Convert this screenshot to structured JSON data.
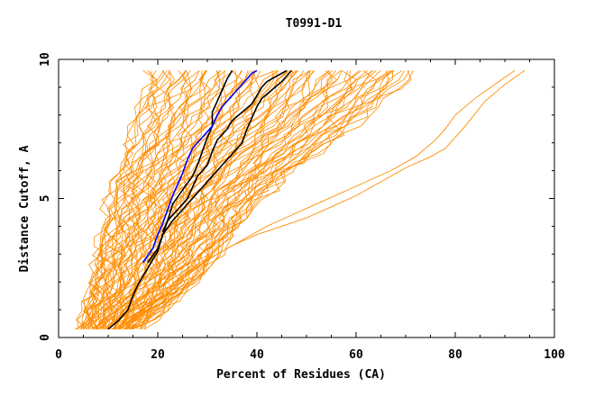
{
  "chart_data": {
    "type": "line",
    "title": "T0991-D1",
    "xlabel": "Percent of Residues (CA)",
    "ylabel": "Distance Cutoff, A",
    "xlim": [
      0,
      100
    ],
    "ylim": [
      0,
      10
    ],
    "xticks": [
      0,
      20,
      40,
      60,
      80,
      100
    ],
    "yticks": [
      0,
      5,
      10
    ],
    "colors": {
      "background": "#ffffff",
      "frame": "#000000",
      "bundle": "#ff8c00",
      "highlight_black": "#000000",
      "highlight_blue": "#0000ff"
    },
    "bundle_note": "Many orange model curves (GDT-style), shown as an approximate envelope",
    "series": [
      {
        "name": "black-1",
        "color": "#000000",
        "x": [
          10,
          12,
          14,
          15,
          16,
          18,
          20,
          21,
          22,
          23,
          25,
          27,
          28,
          29,
          30,
          31,
          31,
          32,
          33,
          34,
          35
        ],
        "y": [
          0.3,
          0.6,
          1.0,
          1.5,
          1.9,
          2.5,
          3.1,
          3.7,
          4.2,
          4.8,
          5.3,
          5.8,
          6.2,
          6.7,
          7.2,
          7.6,
          8.1,
          8.5,
          8.9,
          9.3,
          9.6
        ]
      },
      {
        "name": "black-2",
        "color": "#000000",
        "x": [
          18,
          20,
          21,
          23,
          25,
          27,
          29,
          31,
          33,
          35,
          37,
          38,
          39,
          40,
          41,
          43,
          45,
          47
        ],
        "y": [
          2.7,
          3.2,
          3.7,
          4.2,
          4.6,
          5.0,
          5.4,
          5.8,
          6.2,
          6.6,
          7.0,
          7.5,
          7.9,
          8.3,
          8.6,
          8.9,
          9.2,
          9.6
        ]
      },
      {
        "name": "black-3",
        "color": "#000000",
        "x": [
          21,
          22,
          24,
          26,
          27,
          28,
          30,
          31,
          32,
          34,
          35,
          37,
          39,
          40,
          41,
          42,
          44,
          46
        ],
        "y": [
          3.8,
          4.2,
          4.6,
          5.0,
          5.4,
          5.8,
          6.2,
          6.7,
          7.1,
          7.5,
          7.8,
          8.1,
          8.4,
          8.7,
          9.0,
          9.2,
          9.4,
          9.6
        ]
      },
      {
        "name": "blue",
        "color": "#0000ff",
        "x": [
          17,
          19,
          20,
          21,
          22,
          23,
          24,
          25,
          26,
          27,
          29,
          31,
          32,
          33,
          34,
          35,
          36,
          37,
          38,
          39,
          40
        ],
        "y": [
          2.7,
          3.2,
          3.7,
          4.1,
          4.6,
          5.1,
          5.5,
          5.9,
          6.4,
          6.8,
          7.2,
          7.6,
          8.0,
          8.3,
          8.5,
          8.7,
          8.9,
          9.1,
          9.3,
          9.5,
          9.6
        ]
      },
      {
        "name": "outlier-1",
        "color": "#ff8c00",
        "x": [
          12,
          16,
          20,
          25,
          30,
          35,
          40,
          45,
          50,
          55,
          60,
          65,
          70,
          75,
          78,
          82,
          86,
          90,
          94
        ],
        "y": [
          0.3,
          0.8,
          1.5,
          2.2,
          2.8,
          3.3,
          3.7,
          4.0,
          4.3,
          4.7,
          5.1,
          5.6,
          6.1,
          6.5,
          6.8,
          7.6,
          8.5,
          9.1,
          9.6
        ]
      },
      {
        "name": "outlier-2",
        "color": "#ff8c00",
        "x": [
          14,
          18,
          22,
          27,
          32,
          37,
          42,
          47,
          52,
          57,
          62,
          67,
          72,
          76,
          78,
          80,
          84,
          88,
          92
        ],
        "y": [
          0.5,
          1.0,
          1.7,
          2.4,
          3.0,
          3.5,
          4.0,
          4.4,
          4.8,
          5.2,
          5.6,
          6.0,
          6.5,
          7.1,
          7.5,
          8.0,
          8.6,
          9.1,
          9.6
        ]
      }
    ]
  }
}
